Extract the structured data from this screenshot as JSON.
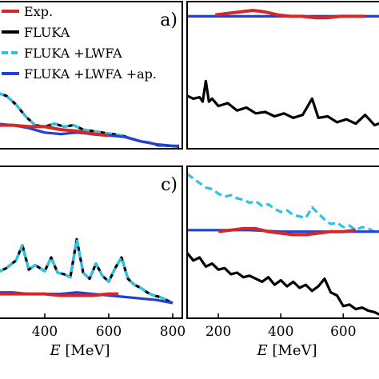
{
  "chart_data": [
    {
      "panel": "a",
      "type": "line",
      "label": "a)",
      "xlim": [
        250,
        830
      ],
      "ylim": [
        0,
        1
      ],
      "series": [
        {
          "name": "Exp.",
          "color": "#d62728",
          "dash": "solid",
          "x": [
            250,
            300,
            350,
            400,
            450,
            500,
            550,
            600
          ],
          "y": [
            0.16,
            0.16,
            0.15,
            0.15,
            0.13,
            0.12,
            0.1,
            0.09
          ]
        },
        {
          "name": "FLUKA",
          "color": "#000000",
          "dash": "solid",
          "x": [
            250,
            280,
            310,
            340,
            370,
            400,
            430,
            460,
            490,
            520,
            550,
            580,
            610,
            640,
            670,
            700,
            730,
            760,
            790,
            820
          ],
          "y": [
            0.38,
            0.36,
            0.3,
            0.22,
            0.16,
            0.15,
            0.17,
            0.15,
            0.16,
            0.13,
            0.12,
            0.11,
            0.1,
            0.09,
            0.07,
            0.05,
            0.04,
            0.02,
            0.02,
            0.01
          ]
        },
        {
          "name": "FLUKA +LWFA",
          "color": "#29c4e8",
          "dash": "dashed",
          "x": [
            250,
            280,
            310,
            340,
            370,
            400,
            430,
            460,
            490,
            520,
            550,
            580,
            610,
            640,
            670,
            700,
            730,
            760,
            790,
            820
          ],
          "y": [
            0.38,
            0.36,
            0.3,
            0.22,
            0.16,
            0.15,
            0.17,
            0.15,
            0.16,
            0.13,
            0.12,
            0.11,
            0.1,
            0.09,
            0.07,
            0.05,
            0.04,
            0.02,
            0.02,
            0.01
          ]
        },
        {
          "name": "FLUKA +LWFA +ap.",
          "color": "#2340d0",
          "dash": "solid",
          "x": [
            250,
            300,
            350,
            400,
            450,
            500,
            550,
            600,
            650,
            700,
            750,
            800,
            820
          ],
          "y": [
            0.17,
            0.16,
            0.14,
            0.11,
            0.1,
            0.11,
            0.1,
            0.09,
            0.08,
            0.05,
            0.03,
            0.02,
            0.02
          ]
        }
      ]
    },
    {
      "panel": "b",
      "type": "line",
      "label": "",
      "xlim": [
        100,
        740
      ],
      "ylim": [
        0,
        1
      ],
      "series": [
        {
          "name": "Exp.",
          "color": "#d62728",
          "dash": "solid",
          "x": [
            190,
            230,
            270,
            310,
            350,
            390,
            430,
            470,
            510,
            550,
            590,
            630,
            670
          ],
          "y": [
            0.91,
            0.92,
            0.93,
            0.94,
            0.93,
            0.91,
            0.9,
            0.9,
            0.89,
            0.89,
            0.9,
            0.9,
            0.9
          ]
        },
        {
          "name": "FLUKA",
          "color": "#000000",
          "dash": "solid",
          "x": [
            100,
            120,
            140,
            150,
            160,
            170,
            180,
            200,
            230,
            260,
            290,
            320,
            350,
            380,
            410,
            440,
            470,
            500,
            520,
            550,
            580,
            610,
            640,
            670,
            700,
            740
          ],
          "y": [
            0.36,
            0.34,
            0.35,
            0.32,
            0.46,
            0.32,
            0.34,
            0.29,
            0.31,
            0.26,
            0.28,
            0.24,
            0.25,
            0.22,
            0.24,
            0.21,
            0.23,
            0.34,
            0.21,
            0.22,
            0.18,
            0.2,
            0.17,
            0.23,
            0.16,
            0.19
          ]
        },
        {
          "name": "FLUKA +LWFA",
          "color": "#29c4e8",
          "dash": "dashed",
          "x": [
            100,
            180,
            260,
            340,
            420,
            500,
            580,
            660,
            740
          ],
          "y": [
            0.9,
            0.9,
            0.9,
            0.9,
            0.9,
            0.9,
            0.9,
            0.9,
            0.9
          ]
        },
        {
          "name": "FLUKA +LWFA +ap.",
          "color": "#2340d0",
          "dash": "solid",
          "x": [
            100,
            180,
            260,
            340,
            420,
            500,
            580,
            660,
            740
          ],
          "y": [
            0.9,
            0.9,
            0.9,
            0.9,
            0.9,
            0.9,
            0.9,
            0.9,
            0.9
          ]
        }
      ]
    },
    {
      "panel": "c",
      "type": "line",
      "label": "c)",
      "xlim": [
        250,
        830
      ],
      "xticks": [
        400,
        600,
        800
      ],
      "xlabel_var": "E",
      "xlabel_unit": "[MeV]",
      "ylim": [
        0,
        1
      ],
      "series": [
        {
          "name": "Exp.",
          "color": "#d62728",
          "dash": "solid",
          "x": [
            250,
            300,
            350,
            400,
            450,
            500,
            550,
            600,
            630
          ],
          "y": [
            0.16,
            0.16,
            0.16,
            0.16,
            0.15,
            0.15,
            0.15,
            0.16,
            0.16
          ]
        },
        {
          "name": "FLUKA",
          "color": "#000000",
          "dash": "solid",
          "x": [
            250,
            280,
            310,
            330,
            350,
            370,
            400,
            420,
            440,
            460,
            480,
            500,
            520,
            540,
            560,
            580,
            600,
            620,
            640,
            660,
            680,
            700,
            720,
            740,
            760,
            780,
            800
          ],
          "y": [
            0.3,
            0.33,
            0.38,
            0.48,
            0.32,
            0.35,
            0.31,
            0.4,
            0.3,
            0.29,
            0.27,
            0.52,
            0.3,
            0.26,
            0.36,
            0.28,
            0.24,
            0.33,
            0.4,
            0.26,
            0.22,
            0.2,
            0.17,
            0.15,
            0.14,
            0.12,
            0.1
          ]
        },
        {
          "name": "FLUKA +LWFA",
          "color": "#29c4e8",
          "dash": "dashed",
          "x": [
            250,
            280,
            310,
            330,
            350,
            370,
            400,
            420,
            440,
            460,
            480,
            500,
            520,
            540,
            560,
            580,
            600,
            620,
            640,
            660,
            680,
            700,
            720,
            740,
            760,
            780,
            800
          ],
          "y": [
            0.3,
            0.33,
            0.38,
            0.48,
            0.32,
            0.35,
            0.31,
            0.4,
            0.3,
            0.29,
            0.27,
            0.52,
            0.3,
            0.26,
            0.36,
            0.28,
            0.24,
            0.33,
            0.4,
            0.26,
            0.22,
            0.2,
            0.17,
            0.15,
            0.14,
            0.12,
            0.1
          ]
        },
        {
          "name": "FLUKA +LWFA +ap.",
          "color": "#2340d0",
          "dash": "solid",
          "x": [
            250,
            300,
            350,
            400,
            450,
            500,
            550,
            600,
            650,
            700,
            750,
            800
          ],
          "y": [
            0.17,
            0.17,
            0.16,
            0.16,
            0.16,
            0.17,
            0.16,
            0.15,
            0.14,
            0.13,
            0.12,
            0.1
          ]
        }
      ]
    },
    {
      "panel": "d",
      "type": "line",
      "label": "",
      "xlim": [
        100,
        740
      ],
      "xticks": [
        200,
        400,
        600
      ],
      "xlabel_var": "E",
      "xlabel_unit": "[MeV]",
      "ylim": [
        0,
        1
      ],
      "series": [
        {
          "name": "Exp.",
          "color": "#d62728",
          "dash": "solid",
          "x": [
            200,
            240,
            280,
            320,
            360,
            400,
            440,
            480,
            520,
            560,
            600,
            640
          ],
          "y": [
            0.57,
            0.58,
            0.59,
            0.59,
            0.57,
            0.56,
            0.55,
            0.55,
            0.56,
            0.57,
            0.57,
            0.58
          ]
        },
        {
          "name": "FLUKA",
          "color": "#000000",
          "dash": "solid",
          "x": [
            100,
            120,
            140,
            160,
            180,
            200,
            220,
            240,
            260,
            280,
            300,
            320,
            340,
            360,
            380,
            400,
            420,
            440,
            460,
            480,
            500,
            520,
            540,
            560,
            580,
            600,
            620,
            640,
            660,
            680,
            700,
            720,
            740
          ],
          "y": [
            0.43,
            0.38,
            0.4,
            0.34,
            0.36,
            0.32,
            0.33,
            0.29,
            0.3,
            0.27,
            0.28,
            0.26,
            0.24,
            0.27,
            0.22,
            0.25,
            0.21,
            0.24,
            0.2,
            0.22,
            0.18,
            0.21,
            0.26,
            0.17,
            0.15,
            0.08,
            0.09,
            0.06,
            0.07,
            0.05,
            0.04,
            0.02,
            0.01
          ]
        },
        {
          "name": "FLUKA +LWFA",
          "color": "#29c4e8",
          "dash": "dashed",
          "x": [
            100,
            120,
            140,
            160,
            180,
            200,
            220,
            240,
            260,
            280,
            300,
            320,
            340,
            360,
            380,
            400,
            420,
            440,
            460,
            480,
            500,
            520,
            540,
            560,
            580,
            600,
            620,
            640,
            660,
            680,
            700,
            720,
            740
          ],
          "y": [
            0.95,
            0.92,
            0.89,
            0.86,
            0.85,
            0.82,
            0.8,
            0.81,
            0.79,
            0.78,
            0.76,
            0.77,
            0.74,
            0.75,
            0.72,
            0.7,
            0.71,
            0.68,
            0.67,
            0.66,
            0.73,
            0.69,
            0.65,
            0.62,
            0.63,
            0.6,
            0.61,
            0.58,
            0.6,
            0.59,
            0.57,
            0.58,
            0.56
          ]
        },
        {
          "name": "FLUKA +LWFA +ap.",
          "color": "#2340d0",
          "dash": "solid",
          "x": [
            100,
            200,
            300,
            400,
            500,
            600,
            700,
            740
          ],
          "y": [
            0.58,
            0.58,
            0.58,
            0.57,
            0.57,
            0.57,
            0.57,
            0.57
          ]
        }
      ]
    }
  ],
  "legend": {
    "placement": "top-left",
    "entries": [
      {
        "label": "Exp.",
        "color": "#d62728",
        "dash": "solid"
      },
      {
        "label": "FLUKA",
        "color": "#000000",
        "dash": "solid"
      },
      {
        "label": "FLUKA +LWFA",
        "color": "#29c4e8",
        "dash": "dashed"
      },
      {
        "label": "FLUKA +LWFA +ap.",
        "color": "#2340d0",
        "dash": "solid"
      }
    ]
  }
}
